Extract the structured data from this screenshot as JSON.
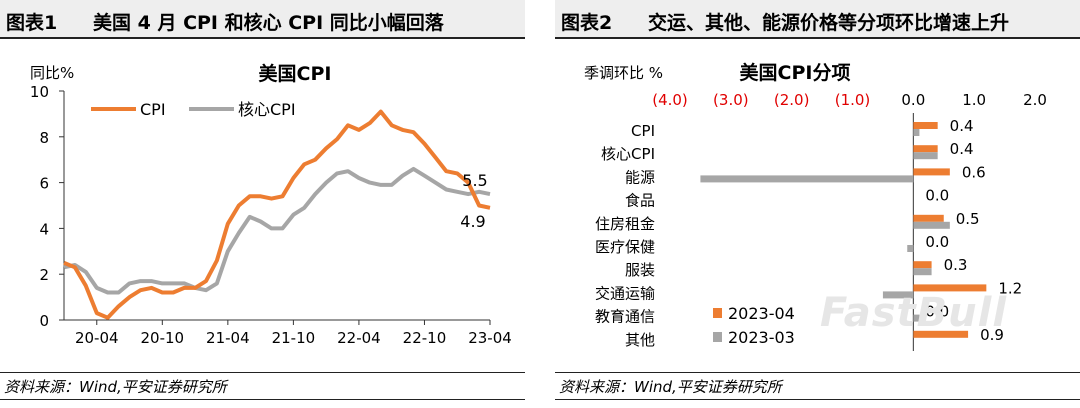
{
  "watermark": "FastBull",
  "figures": [
    {
      "label": "图表1",
      "title": "美国 4 月 CPI 和核心 CPI 同比小幅回落",
      "source": "资料来源：Wind,平安证券研究所"
    },
    {
      "label": "图表2",
      "title": "交运、其他、能源价格等分项环比增速上升",
      "source": "资料来源：Wind,平安证券研究所"
    }
  ],
  "chart_data": [
    {
      "type": "line",
      "title": "美国CPI",
      "ylabel": "同比%",
      "ylim": [
        0,
        10
      ],
      "yticks": [
        0,
        2,
        4,
        6,
        8,
        10
      ],
      "x": [
        "20-01",
        "20-02",
        "20-03",
        "20-04",
        "20-05",
        "20-06",
        "20-07",
        "20-08",
        "20-09",
        "20-10",
        "20-11",
        "20-12",
        "21-01",
        "21-02",
        "21-03",
        "21-04",
        "21-05",
        "21-06",
        "21-07",
        "21-08",
        "21-09",
        "21-10",
        "21-11",
        "21-12",
        "22-01",
        "22-02",
        "22-03",
        "22-04",
        "22-05",
        "22-06",
        "22-07",
        "22-08",
        "22-09",
        "22-10",
        "22-11",
        "22-12",
        "23-01",
        "23-02",
        "23-03",
        "23-04"
      ],
      "xtick_labels": [
        "20-04",
        "20-10",
        "21-04",
        "21-10",
        "22-04",
        "22-10",
        "23-04"
      ],
      "series": [
        {
          "name": "CPI",
          "color": "#ED7D31",
          "values": [
            2.5,
            2.3,
            1.5,
            0.3,
            0.1,
            0.6,
            1.0,
            1.3,
            1.4,
            1.2,
            1.2,
            1.4,
            1.4,
            1.7,
            2.6,
            4.2,
            5.0,
            5.4,
            5.4,
            5.3,
            5.4,
            6.2,
            6.8,
            7.0,
            7.5,
            7.9,
            8.5,
            8.3,
            8.6,
            9.1,
            8.5,
            8.3,
            8.2,
            7.7,
            7.1,
            6.5,
            6.4,
            6.0,
            5.0,
            4.9
          ]
        },
        {
          "name": "核心CPI",
          "color": "#A6A6A6",
          "values": [
            2.3,
            2.4,
            2.1,
            1.4,
            1.2,
            1.2,
            1.6,
            1.7,
            1.7,
            1.6,
            1.6,
            1.6,
            1.4,
            1.3,
            1.6,
            3.0,
            3.8,
            4.5,
            4.3,
            4.0,
            4.0,
            4.6,
            4.9,
            5.5,
            6.0,
            6.4,
            6.5,
            6.2,
            6.0,
            5.9,
            5.9,
            6.3,
            6.6,
            6.3,
            6.0,
            5.7,
            5.6,
            5.5,
            5.6,
            5.5
          ]
        }
      ],
      "end_labels": {
        "CPI": "4.9",
        "核心CPI": "5.5"
      }
    },
    {
      "type": "bar",
      "orientation": "horizontal",
      "title": "美国CPI分项",
      "xlabel": "季调环比 %",
      "xlim": [
        -4.0,
        2.0
      ],
      "xtick_labels": [
        "(4.0)",
        "(3.0)",
        "(2.0)",
        "(1.0)",
        "0.0",
        "1.0",
        "2.0"
      ],
      "categories": [
        "CPI",
        "核心CPI",
        "能源",
        "食品",
        "住房租金",
        "医疗保健",
        "服装",
        "交通运输",
        "教育通信",
        "其他"
      ],
      "series": [
        {
          "name": "2023-04",
          "color": "#ED7D31",
          "values": [
            0.4,
            0.4,
            0.6,
            0.0,
            0.5,
            0.0,
            0.3,
            1.2,
            0.0,
            0.9
          ]
        },
        {
          "name": "2023-03",
          "color": "#A6A6A6",
          "values": [
            0.1,
            0.4,
            -3.5,
            0.0,
            0.6,
            -0.1,
            0.3,
            -0.5,
            0.1,
            0.0
          ]
        }
      ],
      "data_labels": [
        "0.4",
        "0.4",
        "0.6",
        "0.0",
        "0.5",
        "0.0",
        "0.3",
        "1.2",
        "0.0",
        "0.9"
      ]
    }
  ]
}
